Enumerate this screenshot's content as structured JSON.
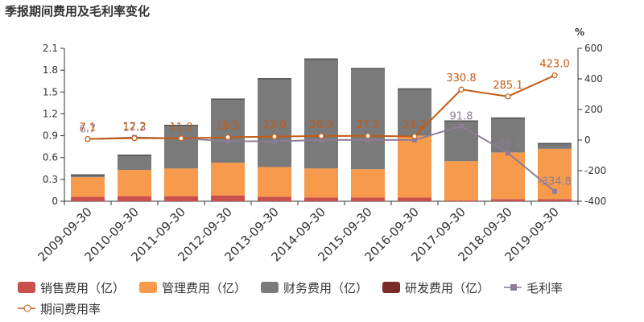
{
  "chart_data": {
    "type": "bar",
    "title": "季报期间费用及毛利率变化",
    "right_axis_unit": "%",
    "categories": [
      "2009-09-30",
      "2010-09-30",
      "2011-09-30",
      "2012-09-30",
      "2013-09-30",
      "2014-09-30",
      "2015-09-30",
      "2016-09-30",
      "2017-09-30",
      "2018-09-30",
      "2019-09-30"
    ],
    "left_axis": {
      "min": 0,
      "max": 2.1,
      "ticks": [
        "0",
        "0.3",
        "0.6",
        "0.9",
        "1.2",
        "1.5",
        "1.8",
        "2.1"
      ]
    },
    "right_axis": {
      "min": -400,
      "max": 600,
      "ticks": [
        "-400",
        "-200",
        "0",
        "200",
        "400",
        "600"
      ]
    },
    "stacked": true,
    "series": [
      {
        "name": "销售费用（亿）",
        "kind": "bar",
        "color": "#c9504c",
        "values": [
          0.06,
          0.07,
          0.07,
          0.08,
          0.06,
          0.05,
          0.05,
          0.05,
          0.01,
          0.03,
          0.03
        ]
      },
      {
        "name": "管理费用（亿）",
        "kind": "bar",
        "color": "#f79a4b",
        "values": [
          0.27,
          0.36,
          0.38,
          0.45,
          0.41,
          0.4,
          0.39,
          0.85,
          0.54,
          0.64,
          0.69
        ]
      },
      {
        "name": "财务费用（亿）",
        "kind": "bar",
        "color": "#7a7a7a",
        "values": [
          0.04,
          0.21,
          0.6,
          0.88,
          1.22,
          1.51,
          1.39,
          0.65,
          0.56,
          0.48,
          0.08
        ]
      },
      {
        "name": "研发费用（亿）",
        "kind": "bar",
        "color": "#7b2a26",
        "values": [
          0,
          0,
          0,
          0,
          0,
          0,
          0,
          0,
          0,
          0,
          0
        ]
      },
      {
        "name": "毛利率",
        "kind": "line",
        "axis": "right",
        "color": "#8c7d96",
        "marker": "square",
        "values": [
          6.7,
          17.3,
          11.0,
          -7,
          -8,
          0.5,
          1.2,
          0.5,
          91.8,
          -85.1,
          -334.8
        ],
        "labels": [
          "6.7",
          "17.3",
          "",
          "",
          "",
          "",
          "",
          "",
          "91.8",
          "-85.1",
          "-334.8"
        ]
      },
      {
        "name": "期间费用率",
        "kind": "line",
        "axis": "right",
        "color": "#c55a11",
        "marker": "circle",
        "values": [
          7.1,
          12.2,
          11.0,
          18.5,
          23.0,
          26.9,
          27.3,
          24.2,
          330.8,
          285.1,
          423.0
        ],
        "labels": [
          "7.1",
          "12.2",
          "11.0",
          "18.5",
          "23.0",
          "26.9",
          "27.3",
          "24.2",
          "330.8",
          "285.1",
          "423.0"
        ]
      }
    ]
  }
}
